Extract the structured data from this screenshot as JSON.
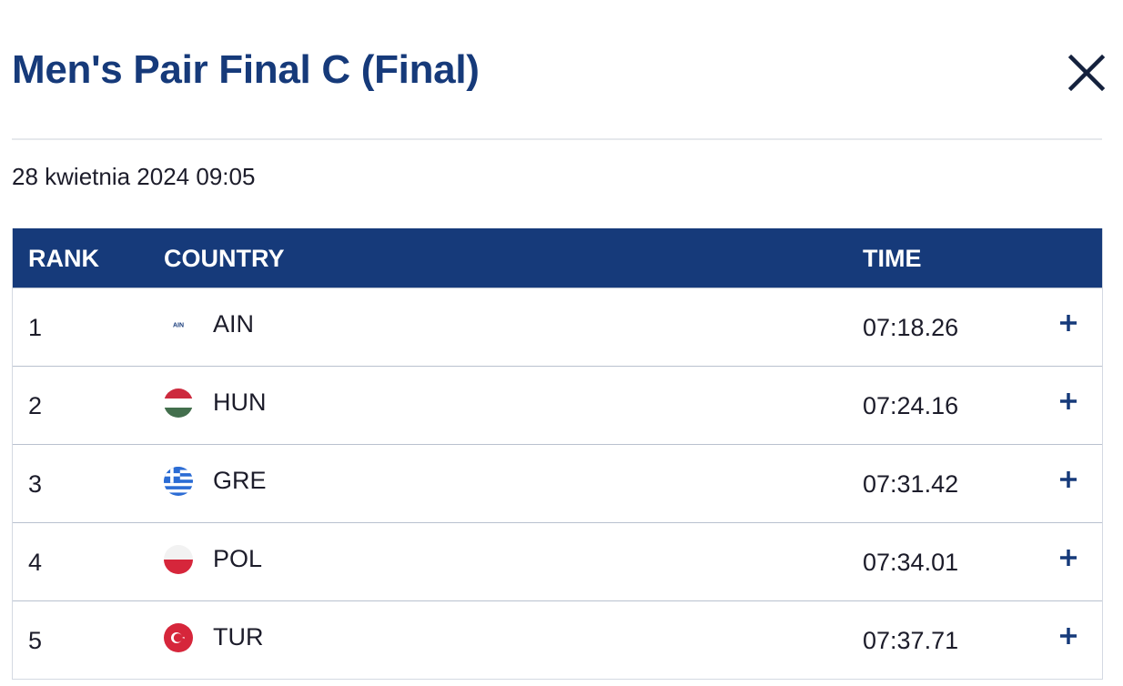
{
  "header": {
    "title": "Men's Pair Final C (Final)",
    "date": "28 kwietnia 2024 09:05"
  },
  "table": {
    "columns": [
      "RANK",
      "COUNTRY",
      "TIME"
    ],
    "rows": [
      {
        "rank": 1,
        "country": "AIN",
        "time": "07:18.26",
        "flag_label": "AIN"
      },
      {
        "rank": 2,
        "country": "HUN",
        "time": "07:24.16"
      },
      {
        "rank": 3,
        "country": "GRE",
        "time": "07:31.42"
      },
      {
        "rank": 4,
        "country": "POL",
        "time": "07:34.01"
      },
      {
        "rank": 5,
        "country": "TUR",
        "time": "07:37.71"
      }
    ]
  }
}
